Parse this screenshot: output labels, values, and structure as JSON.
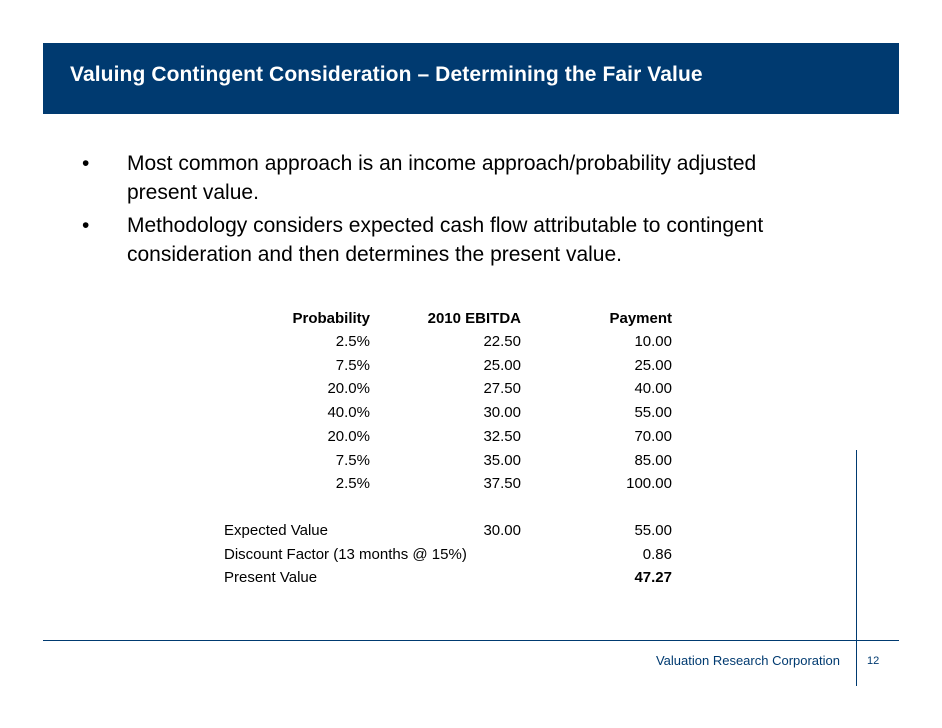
{
  "slide": {
    "title": "Valuing Contingent Consideration – Determining the Fair Value",
    "bullets": [
      {
        "mark": "•",
        "lines": [
          "Most common approach is an income approach/probability adjusted",
          "present value."
        ]
      },
      {
        "mark": "•",
        "lines": [
          "Methodology considers expected cash flow attributable to contingent",
          "consideration and then determines the present value."
        ]
      }
    ]
  },
  "table": {
    "headers": {
      "probability": "Probability",
      "ebitda": "2010 EBITDA",
      "payment": "Payment"
    },
    "rows": [
      {
        "probability": "2.5%",
        "ebitda": "22.50",
        "payment": "10.00"
      },
      {
        "probability": "7.5%",
        "ebitda": "25.00",
        "payment": "25.00"
      },
      {
        "probability": "20.0%",
        "ebitda": "27.50",
        "payment": "40.00"
      },
      {
        "probability": "40.0%",
        "ebitda": "30.00",
        "payment": "55.00"
      },
      {
        "probability": "20.0%",
        "ebitda": "32.50",
        "payment": "70.00"
      },
      {
        "probability": "7.5%",
        "ebitda": "35.00",
        "payment": "85.00"
      },
      {
        "probability": "2.5%",
        "ebitda": "37.50",
        "payment": "100.00"
      }
    ],
    "summary": {
      "expected_value": {
        "label": "Expected Value",
        "ebitda": "30.00",
        "payment": "55.00"
      },
      "discount_factor": {
        "label": "Discount Factor (13 months @ 15%)",
        "payment": "0.86"
      },
      "present_value": {
        "label": "Present Value",
        "payment": "47.27"
      }
    }
  },
  "footer": {
    "company": "Valuation Research Corporation",
    "page_number": "12"
  },
  "colors": {
    "brand_navy": "#003a70"
  }
}
